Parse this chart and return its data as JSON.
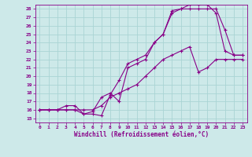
{
  "xlabel": "Windchill (Refroidissement éolien,°C)",
  "background_color": "#cde9e9",
  "grid_color": "#aad4d4",
  "line_color": "#880088",
  "xlim": [
    -0.5,
    23.5
  ],
  "ylim": [
    14.5,
    28.5
  ],
  "xticks": [
    0,
    1,
    2,
    3,
    4,
    5,
    6,
    7,
    8,
    9,
    10,
    11,
    12,
    13,
    14,
    15,
    16,
    17,
    18,
    19,
    20,
    21,
    22,
    23
  ],
  "yticks": [
    15,
    16,
    17,
    18,
    19,
    20,
    21,
    22,
    23,
    24,
    25,
    26,
    27,
    28
  ],
  "line1_x": [
    0,
    1,
    2,
    3,
    4,
    5,
    6,
    7,
    8,
    9,
    10,
    11,
    12,
    13,
    14,
    15,
    16,
    17,
    18,
    19,
    20,
    21,
    22,
    23
  ],
  "line1_y": [
    16,
    16,
    16,
    16,
    16,
    15.5,
    15.5,
    15.3,
    17.8,
    19.5,
    21.5,
    22,
    22.5,
    24,
    25,
    27.5,
    28,
    28,
    28,
    28,
    28,
    25.5,
    22.5,
    22.5
  ],
  "line2_x": [
    0,
    1,
    2,
    3,
    4,
    5,
    6,
    7,
    8,
    9,
    10,
    11,
    12,
    13,
    14,
    15,
    16,
    17,
    18,
    19,
    20,
    21,
    22,
    23
  ],
  "line2_y": [
    16,
    16,
    16,
    16.5,
    16.5,
    15.5,
    15.8,
    17.5,
    18.0,
    17.0,
    21,
    21.5,
    22,
    24,
    25,
    27.8,
    28,
    28.5,
    28.5,
    28.5,
    27.5,
    23,
    22.5,
    22.5
  ],
  "line3_x": [
    0,
    1,
    2,
    3,
    4,
    5,
    6,
    7,
    8,
    9,
    10,
    11,
    12,
    13,
    14,
    15,
    16,
    17,
    18,
    19,
    20,
    21,
    22,
    23
  ],
  "line3_y": [
    16,
    16,
    16,
    16,
    16,
    16,
    16,
    16.5,
    17.5,
    18,
    18.5,
    19,
    20,
    21,
    22,
    22.5,
    23,
    23.5,
    20.5,
    21,
    22,
    22,
    22,
    22
  ]
}
